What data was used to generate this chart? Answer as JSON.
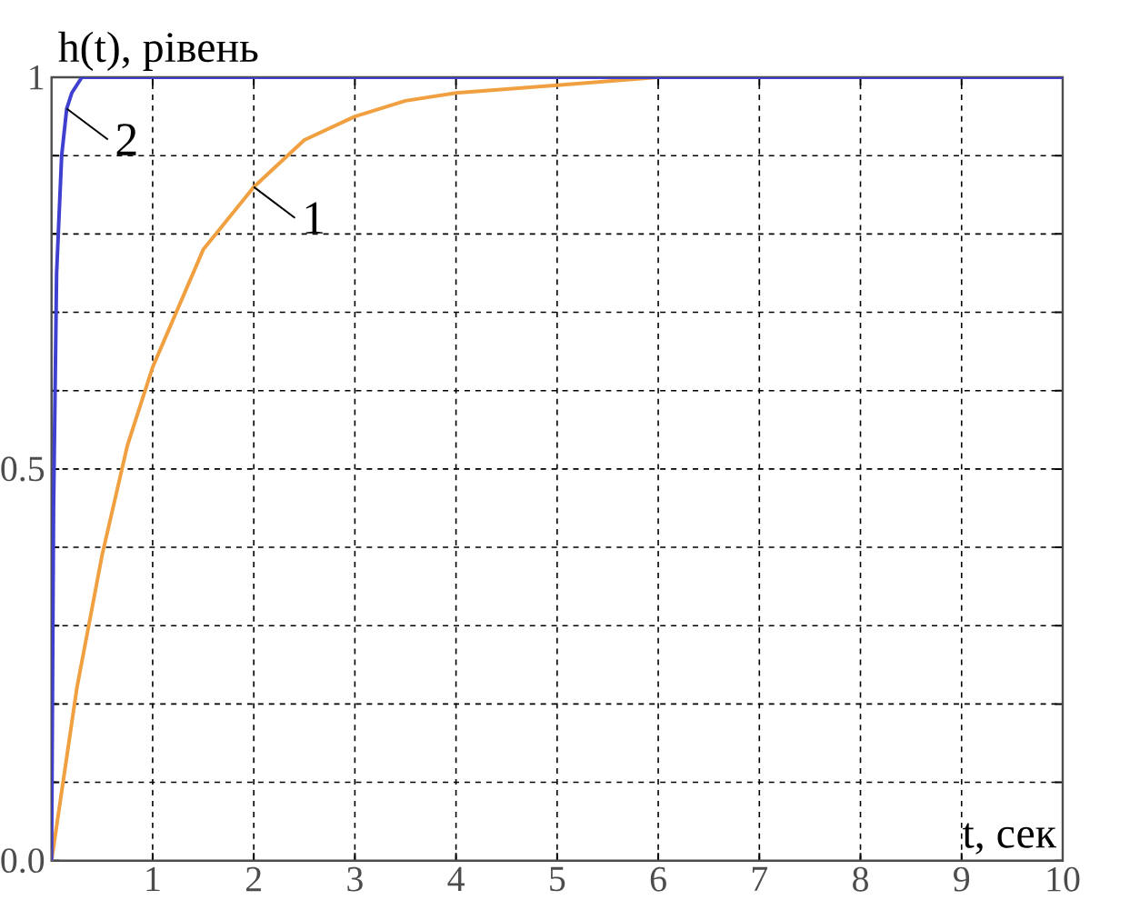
{
  "chart_data": {
    "type": "line",
    "xlabel": "t, сек",
    "ylabel": "h(t), рівень",
    "xlim": [
      0,
      10
    ],
    "ylim": [
      0,
      1
    ],
    "xticks": [
      1,
      2,
      3,
      4,
      5,
      6,
      7,
      8,
      9,
      10
    ],
    "yticks": [
      {
        "value": 0,
        "label": "0.0"
      },
      {
        "value": 0.1,
        "label": null
      },
      {
        "value": 0.2,
        "label": null
      },
      {
        "value": 0.3,
        "label": null
      },
      {
        "value": 0.4,
        "label": null
      },
      {
        "value": 0.5,
        "label": "0.5"
      },
      {
        "value": 0.6,
        "label": null
      },
      {
        "value": 0.7,
        "label": null
      },
      {
        "value": 0.8,
        "label": null
      },
      {
        "value": 0.9,
        "label": null
      },
      1
    ],
    "grid": true,
    "line_style": "solid",
    "series": [
      {
        "name": "1",
        "color": "#f0a040",
        "x": [
          0,
          0.25,
          0.5,
          0.75,
          1,
          1.5,
          2,
          2.5,
          3,
          3.5,
          4,
          5,
          6
        ],
        "values": [
          0,
          0.22,
          0.39,
          0.53,
          0.63,
          0.78,
          0.86,
          0.92,
          0.95,
          0.97,
          0.98,
          0.99,
          1
        ]
      },
      {
        "name": "2",
        "color": "#4040d0",
        "x": [
          0,
          0.02,
          0.05,
          0.1,
          0.15,
          0.2,
          0.3,
          0.5,
          10
        ],
        "values": [
          0,
          0.45,
          0.75,
          0.9,
          0.96,
          0.98,
          1,
          1,
          1
        ]
      }
    ]
  }
}
